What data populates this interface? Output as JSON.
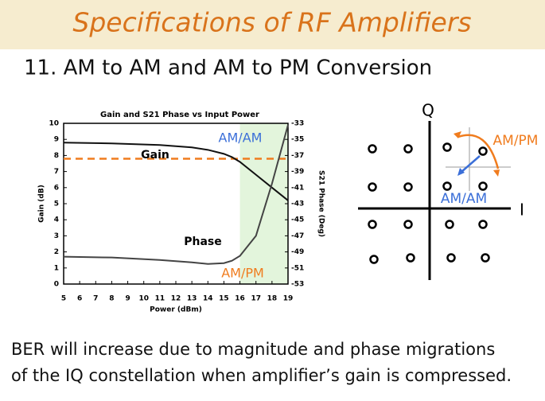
{
  "header": {
    "title": "Specifications of RF Amplifiers"
  },
  "subtitle": "11. AM to AM and AM to PM Conversion",
  "chart_data": {
    "type": "line",
    "title": "Gain and S21 Phase vs Input Power",
    "xlabel": "Power (dBm)",
    "ylabel": "Gain (dB)",
    "y2label": "S21 Phase (Deg)",
    "x": [
      5,
      8,
      11,
      13,
      14,
      15,
      15.5,
      16,
      17,
      18,
      19
    ],
    "series": [
      {
        "name": "Gain",
        "color": "#111111",
        "values": [
          8.8,
          8.75,
          8.65,
          8.5,
          8.35,
          8.1,
          7.9,
          7.6,
          6.8,
          6.0,
          5.2
        ]
      },
      {
        "name": "Phase",
        "color": "#444444",
        "axis": "y2",
        "values": [
          -49.6,
          -49.7,
          -50.0,
          -50.3,
          -50.5,
          -50.4,
          -50.1,
          -49.5,
          -47.0,
          -40.5,
          -33.2
        ]
      }
    ],
    "xlim": [
      5,
      19
    ],
    "xticks": [
      5,
      6,
      7,
      8,
      9,
      10,
      11,
      12,
      13,
      14,
      15,
      16,
      17,
      18,
      19
    ],
    "ylim": [
      0,
      10
    ],
    "yticks": [
      0,
      1,
      2,
      3,
      4,
      5,
      6,
      7,
      8,
      9,
      10
    ],
    "y2lim": [
      -53,
      -33
    ],
    "y2ticks": [
      -53,
      -51,
      -49,
      -47,
      -45,
      -43,
      -41,
      -39,
      -37,
      -35,
      -33
    ],
    "reference_line": {
      "value": 7.8,
      "color": "#f07c1e"
    },
    "shaded_xrange": {
      "values": [
        16,
        19
      ],
      "color": "#e3f5dc"
    },
    "annotations": [
      "AM/AM",
      "AM/PM"
    ]
  },
  "diagram": {
    "q_label": "Q",
    "i_label": "I",
    "am_pm": "AM/PM",
    "am_am": "AM/AM"
  },
  "body": [
    "BER will increase due to magnitude and phase migrations",
    "of the IQ constellation when amplifier’s gain is compressed."
  ]
}
